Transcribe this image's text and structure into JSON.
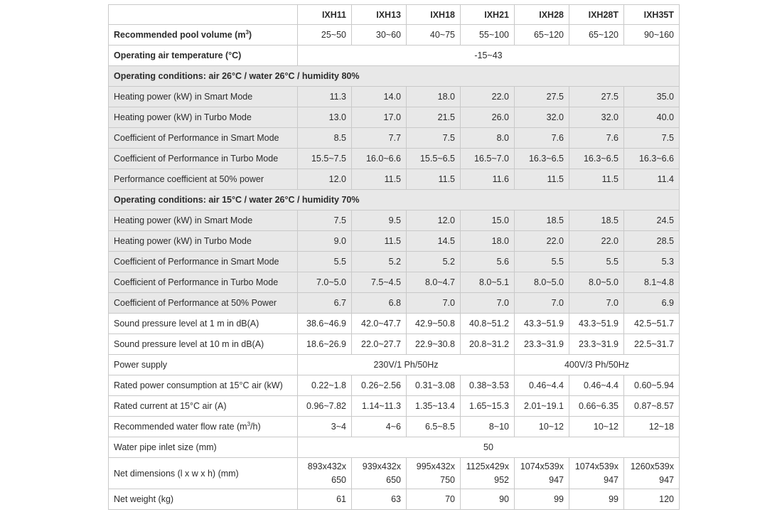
{
  "table": {
    "headers": [
      "",
      "IXH11",
      "IXH13",
      "IXH18",
      "IXH21",
      "IXH28",
      "IXH28T",
      "IXH35T"
    ],
    "pool_volume": {
      "label_pre": "Recommended pool volume (m",
      "label_sup": "3",
      "label_post": ")",
      "values": [
        "25~50",
        "30~60",
        "40~75",
        "55~100",
        "65~120",
        "65~120",
        "90~160"
      ]
    },
    "air_temp": {
      "label": "Operating air temperature (°C)",
      "value": "-15~43"
    },
    "cond1": {
      "title": "Operating conditions: air 26°C / water 26°C / humidity 80%",
      "rows": [
        {
          "label": "Heating power (kW) in Smart Mode",
          "values": [
            "11.3",
            "14.0",
            "18.0",
            "22.0",
            "27.5",
            "27.5",
            "35.0"
          ]
        },
        {
          "label": "Heating power (kW) in Turbo Mode",
          "values": [
            "13.0",
            "17.0",
            "21.5",
            "26.0",
            "32.0",
            "32.0",
            "40.0"
          ]
        },
        {
          "label": "Coefficient of Performance in Smart Mode",
          "values": [
            "8.5",
            "7.7",
            "7.5",
            "8.0",
            "7.6",
            "7.6",
            "7.5"
          ]
        },
        {
          "label": "Coefficient of Performance in Turbo Mode",
          "values": [
            "15.5~7.5",
            "16.0~6.6",
            "15.5~6.5",
            "16.5~7.0",
            "16.3~6.5",
            "16.3~6.5",
            "16.3~6.6"
          ]
        },
        {
          "label": "Performance coefficient at 50% power",
          "values": [
            "12.0",
            "11.5",
            "11.5",
            "11.6",
            "11.5",
            "11.5",
            "11.4"
          ]
        }
      ]
    },
    "cond2": {
      "title": "Operating conditions: air 15°C / water 26°C / humidity 70%",
      "rows": [
        {
          "label": "Heating power (kW) in Smart Mode",
          "values": [
            "7.5",
            "9.5",
            "12.0",
            "15.0",
            "18.5",
            "18.5",
            "24.5"
          ]
        },
        {
          "label": "Heating power (kW) in Turbo Mode",
          "values": [
            "9.0",
            "11.5",
            "14.5",
            "18.0",
            "22.0",
            "22.0",
            "28.5"
          ]
        },
        {
          "label": "Coefficient of Performance in Smart Mode",
          "values": [
            "5.5",
            "5.2",
            "5.2",
            "5.6",
            "5.5",
            "5.5",
            "5.3"
          ]
        },
        {
          "label": "Coefficient of Performance in Turbo Mode",
          "values": [
            "7.0~5.0",
            "7.5~4.5",
            "8.0~4.7",
            "8.0~5.1",
            "8.0~5.0",
            "8.0~5.0",
            "8.1~4.8"
          ]
        },
        {
          "label": "Coefficient of Performance at 50% Power",
          "values": [
            "6.7",
            "6.8",
            "7.0",
            "7.0",
            "7.0",
            "7.0",
            "6.9"
          ]
        }
      ]
    },
    "sound_1m": {
      "label": "Sound pressure level at 1 m in dB(A)",
      "values": [
        "38.6~46.9",
        "42.0~47.7",
        "42.9~50.8",
        "40.8~51.2",
        "43.3~51.9",
        "43.3~51.9",
        "42.5~51.7"
      ]
    },
    "sound_10m": {
      "label": "Sound pressure level at 10 m in dB(A)",
      "values": [
        "18.6~26.9",
        "22.0~27.7",
        "22.9~30.8",
        "20.8~31.2",
        "23.3~31.9",
        "23.3~31.9",
        "22.5~31.7"
      ]
    },
    "power_supply": {
      "label": "Power supply",
      "single": "230V/1 Ph/50Hz",
      "three": "400V/3 Ph/50Hz"
    },
    "rated_power": {
      "label": "Rated power consumption at 15°C air (kW)",
      "values": [
        "0.22~1.8",
        "0.26~2.56",
        "0.31~3.08",
        "0.38~3.53",
        "0.46~4.4",
        "0.46~4.4",
        "0.60~5.94"
      ]
    },
    "rated_current": {
      "label": "Rated current at 15°C air (A)",
      "values": [
        "0.96~7.82",
        "1.14~11.3",
        "1.35~13.4",
        "1.65~15.3",
        "2.01~19.1",
        "0.66~6.35",
        "0.87~8.57"
      ]
    },
    "water_flow": {
      "label_pre": "Recommended water flow rate (m",
      "label_sup": "3",
      "label_post": "/h)",
      "values": [
        "3~4",
        "4~6",
        "6.5~8.5",
        "8~10",
        "10~12",
        "10~12",
        "12~18"
      ]
    },
    "pipe_inlet": {
      "label": "Water pipe inlet size (mm)",
      "value": "50"
    },
    "dimensions": {
      "label": "Net dimensions (l x w x h) (mm)",
      "values": [
        {
          "l1": "893x432x",
          "l2": "650"
        },
        {
          "l1": "939x432x",
          "l2": "650"
        },
        {
          "l1": "995x432x",
          "l2": "750"
        },
        {
          "l1": "1125x429x",
          "l2": "952"
        },
        {
          "l1": "1074x539x",
          "l2": "947"
        },
        {
          "l1": "1074x539x",
          "l2": "947"
        },
        {
          "l1": "1260x539x",
          "l2": "947"
        }
      ]
    },
    "weight": {
      "label": "Net weight (kg)",
      "values": [
        "61",
        "63",
        "70",
        "90",
        "99",
        "99",
        "120"
      ]
    }
  }
}
